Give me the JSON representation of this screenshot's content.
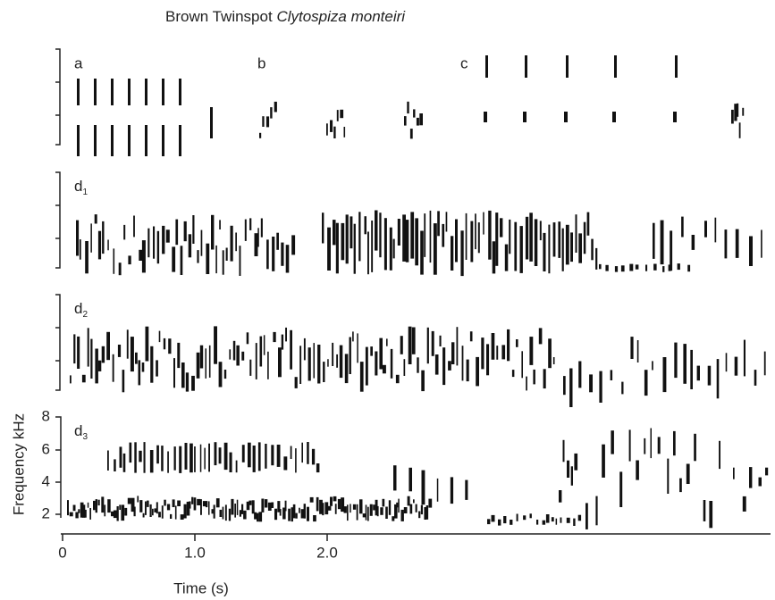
{
  "title": {
    "common": "Brown Twinspot",
    "scientific": "Clytospiza monteiri"
  },
  "panels": [
    {
      "letter": "a"
    },
    {
      "letter": "b"
    },
    {
      "letter": "c"
    },
    {
      "letter": "d",
      "sub": "1"
    },
    {
      "letter": "d",
      "sub": "2"
    },
    {
      "letter": "d",
      "sub": "3"
    }
  ],
  "y_axis": {
    "label": "Frequency kHz",
    "ticks": [
      "8",
      "6",
      "4",
      "2"
    ]
  },
  "x_axis": {
    "label": "Time (s)",
    "ticks": [
      "0",
      "1.0",
      "2.0"
    ]
  }
}
